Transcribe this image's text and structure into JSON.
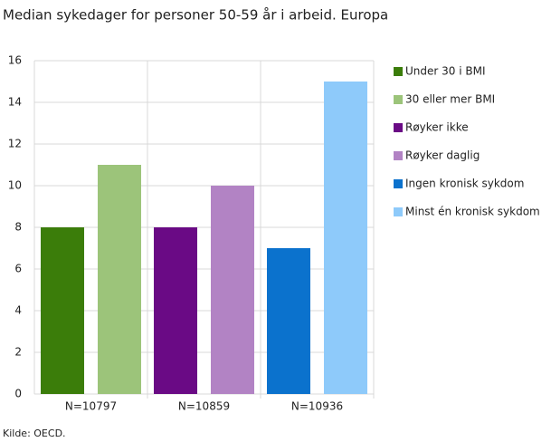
{
  "chart_data": {
    "type": "bar",
    "title": "Median sykedager for personer 50-59 år i arbeid. Europa",
    "categories": [
      "N=10797",
      "N=10859",
      "N=10936"
    ],
    "series": [
      {
        "name": "Under 30 i BMI",
        "color": "#3b7d0a",
        "values": [
          8,
          null,
          null
        ]
      },
      {
        "name": "30 eller mer BMI",
        "color": "#9cc47a",
        "values": [
          11,
          null,
          null
        ]
      },
      {
        "name": "Røyker ikke",
        "color": "#6a0a85",
        "values": [
          null,
          8,
          null
        ]
      },
      {
        "name": "Røyker daglig",
        "color": "#b283c4",
        "values": [
          null,
          10,
          null
        ]
      },
      {
        "name": "Ingen kronisk sykdom",
        "color": "#0b72cd",
        "values": [
          null,
          null,
          7
        ]
      },
      {
        "name": "Minst én kronisk sykdom",
        "color": "#8ecafa",
        "values": [
          null,
          null,
          15
        ]
      }
    ],
    "ylim": [
      0,
      16
    ],
    "yticks": [
      0,
      2,
      4,
      6,
      8,
      10,
      12,
      14,
      16
    ],
    "grid": true,
    "legend": "right",
    "source": "Kilde: OECD."
  }
}
